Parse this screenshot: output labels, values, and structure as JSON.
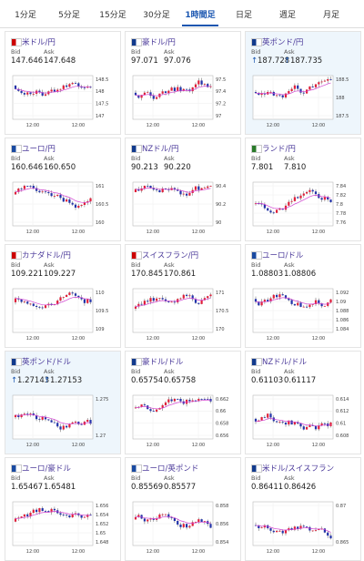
{
  "tabs": [
    "1分足",
    "5分足",
    "15分足",
    "30分足",
    "1時間足",
    "日足",
    "週足",
    "月足"
  ],
  "active_tab": 4,
  "bid_label": "Bid",
  "ask_label": "Ask",
  "time_label": "12:00",
  "cards": [
    {
      "name": "米ドル/円",
      "bid": "147.646",
      "ask": "147.648",
      "ticks": [
        "148.5",
        "148",
        "147.5",
        "147"
      ]
    },
    {
      "name": "豪ドル/円",
      "bid": "97.071",
      "ask": "97.076",
      "ticks": [
        "97.5",
        "97.4",
        "97.2",
        "97"
      ]
    },
    {
      "name": "英ポンド/円",
      "arrow": "↑",
      "bid": "187.728",
      "ask": "187.735",
      "ticks": [
        "188.5",
        "188",
        "187.5"
      ]
    },
    {
      "name": "ユーロ/円",
      "bid": "160.646",
      "ask": "160.650",
      "ticks": [
        "161",
        "160.5",
        "160"
      ]
    },
    {
      "name": "NZドル/円",
      "bid": "90.213",
      "ask": "90.220",
      "ticks": [
        "90.4",
        "90.2",
        "90"
      ]
    },
    {
      "name": "ランド/円",
      "bid": "7.801",
      "ask": "7.810",
      "ticks": [
        "7.84",
        "7.82",
        "7.8",
        "7.78",
        "7.76"
      ]
    },
    {
      "name": "カナダドル/円",
      "bid": "109.221",
      "ask": "109.227",
      "ticks": [
        "110",
        "109.5",
        "109"
      ]
    },
    {
      "name": "スイスフラン/円",
      "bid": "170.845",
      "ask": "170.861",
      "ticks": [
        "171",
        "170.5",
        "170"
      ]
    },
    {
      "name": "ユーロ/ドル",
      "bid": "1.08803",
      "ask": "1.08806",
      "ticks": [
        "1.092",
        "1.09",
        "1.088",
        "1.086",
        "1.084"
      ]
    },
    {
      "name": "英ポンド/ドル",
      "arrow": "↑",
      "bid": "1.27143",
      "ask": "1.27153",
      "ticks": [
        "1.275",
        "1.27"
      ]
    },
    {
      "name": "豪ドル/ドル",
      "bid": "0.65754",
      "ask": "0.65758",
      "ticks": [
        "0.662",
        "0.66",
        "0.658",
        "0.656"
      ]
    },
    {
      "name": "NZドル/ドル",
      "bid": "0.61103",
      "ask": "0.61117",
      "ticks": [
        "0.614",
        "0.612",
        "0.61",
        "0.608"
      ]
    },
    {
      "name": "ユーロ/豪ドル",
      "bid": "1.65467",
      "ask": "1.65481",
      "ticks": [
        "1.656",
        "1.654",
        "1.652",
        "1.65",
        "1.648"
      ]
    },
    {
      "name": "ユーロ/英ポンド",
      "bid": "0.85569",
      "ask": "0.85577",
      "ticks": [
        "0.858",
        "0.856",
        "0.854"
      ]
    },
    {
      "name": "米ドル/スイスフラン",
      "bid": "0.86411",
      "ask": "0.86426",
      "ticks": [
        "0.87",
        "0.865"
      ]
    }
  ]
}
